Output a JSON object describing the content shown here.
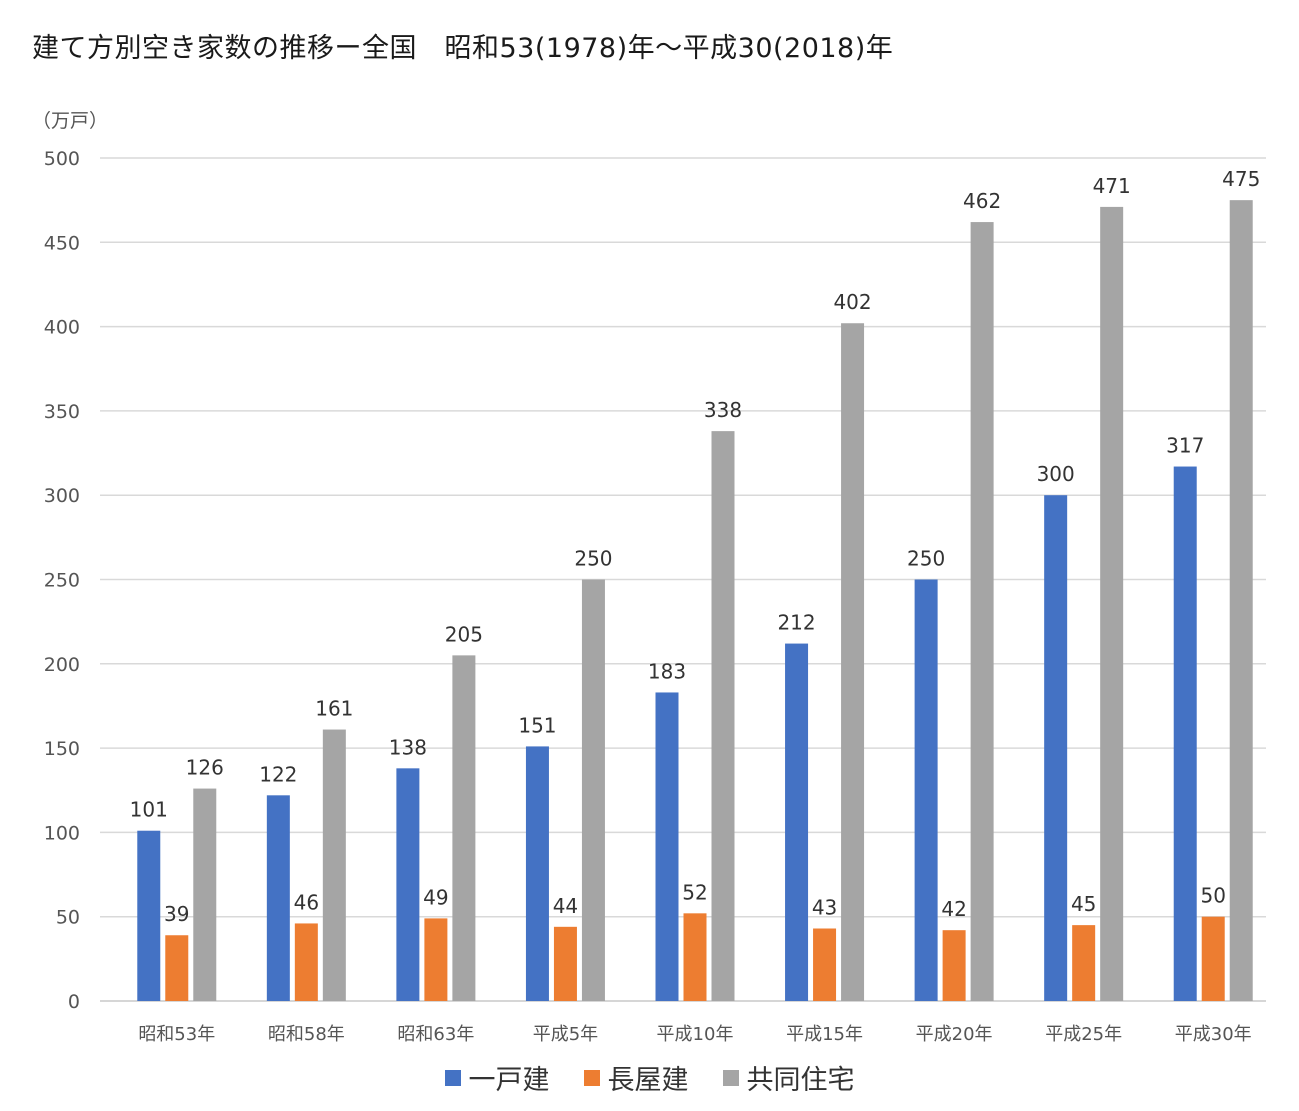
{
  "chart_data": {
    "type": "bar",
    "title": "建て方別空き家数の推移ー全国　昭和53(1978)年〜平成30(2018)年",
    "ylabel": "（万戸）",
    "xlabel": "",
    "ylim": [
      0,
      500
    ],
    "yticks": [
      0,
      50,
      100,
      150,
      200,
      250,
      300,
      350,
      400,
      450,
      500
    ],
    "grid": true,
    "legend_position": "bottom",
    "categories": [
      "昭和53年",
      "昭和58年",
      "昭和63年",
      "平成5年",
      "平成10年",
      "平成15年",
      "平成20年",
      "平成25年",
      "平成30年"
    ],
    "series": [
      {
        "name": "一戸建",
        "color": "#4472C4",
        "values": [
          101,
          122,
          138,
          151,
          183,
          212,
          250,
          300,
          317
        ]
      },
      {
        "name": "長屋建",
        "color": "#ED7D31",
        "values": [
          39,
          46,
          49,
          44,
          52,
          43,
          42,
          45,
          50
        ]
      },
      {
        "name": "共同住宅",
        "color": "#A5A5A5",
        "values": [
          126,
          161,
          205,
          250,
          338,
          402,
          462,
          471,
          475
        ]
      }
    ]
  }
}
